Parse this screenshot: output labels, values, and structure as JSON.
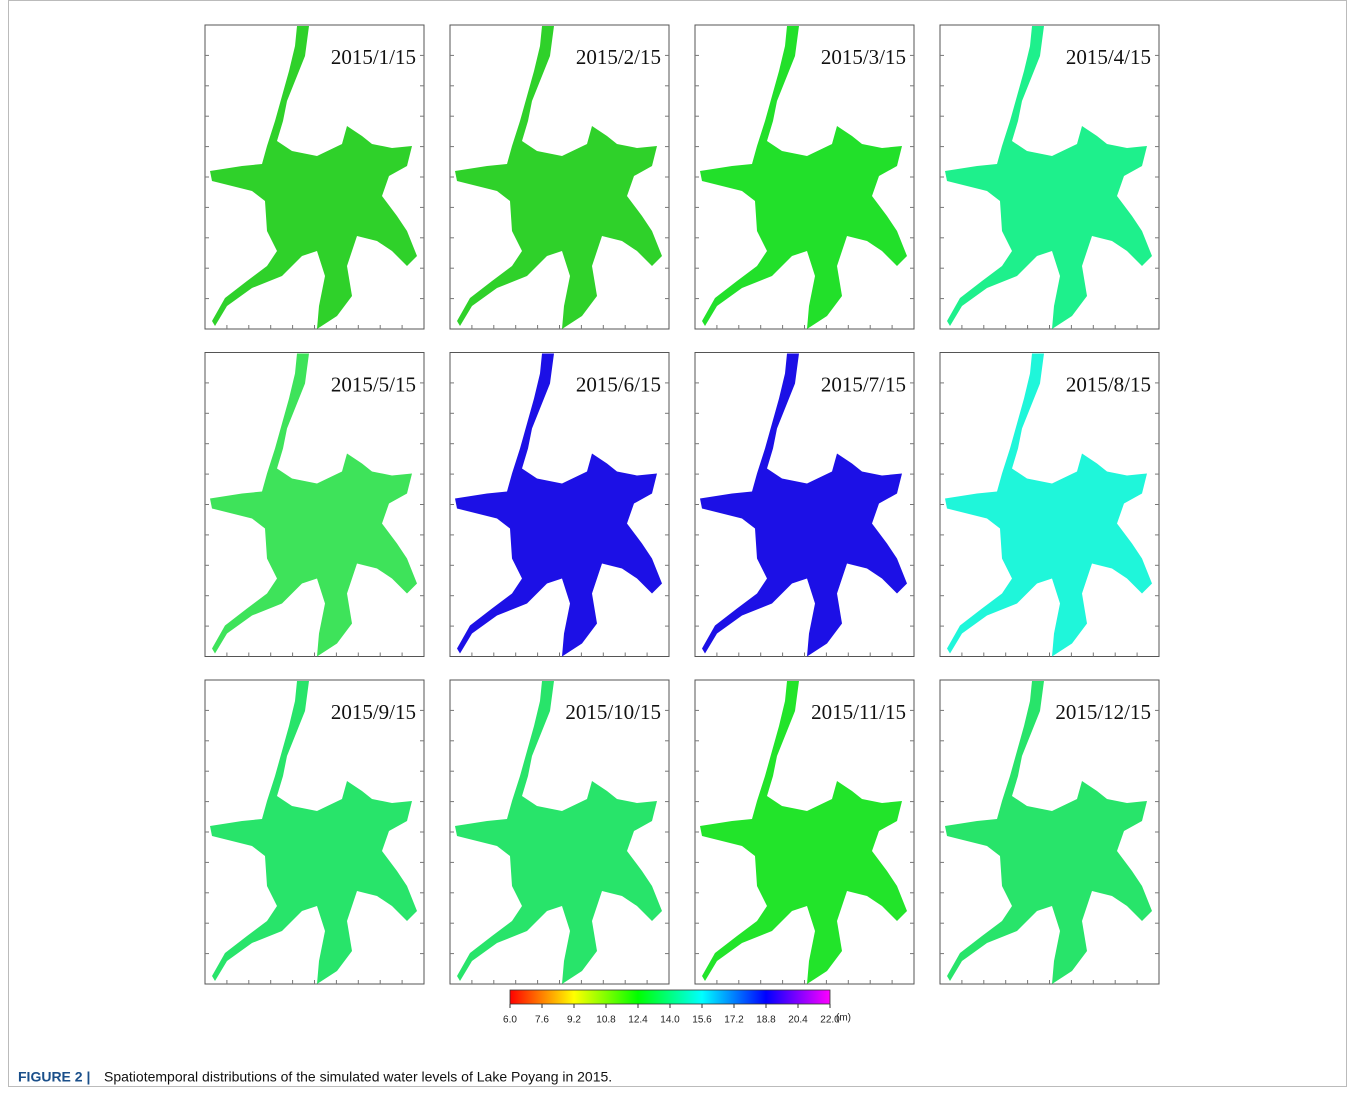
{
  "figure": {
    "panels": [
      {
        "label": "2015/1/15",
        "color": "#2fd12a"
      },
      {
        "label": "2015/2/15",
        "color": "#2fd12a"
      },
      {
        "label": "2015/3/15",
        "color": "#22e02a"
      },
      {
        "label": "2015/4/15",
        "color": "#1ef08c"
      },
      {
        "label": "2015/5/15",
        "color": "#3ee35a"
      },
      {
        "label": "2015/6/15",
        "color": "#1c10e6"
      },
      {
        "label": "2015/7/15",
        "color": "#1c10e6"
      },
      {
        "label": "2015/8/15",
        "color": "#1ff6da"
      },
      {
        "label": "2015/9/15",
        "color": "#28e46a"
      },
      {
        "label": "2015/10/15",
        "color": "#28e46a"
      },
      {
        "label": "2015/11/15",
        "color": "#22e42a"
      },
      {
        "label": "2015/12/15",
        "color": "#28e46a"
      }
    ],
    "colorbar": {
      "lim": [
        6,
        22
      ],
      "colors": [
        "#ff0000",
        "#ffff00",
        "#00ff00",
        "#00ffff",
        "#0000ff",
        "#ff00ff"
      ],
      "ticks": [
        {
          "value": 6,
          "label": "6.0"
        },
        7.6,
        9.2,
        10.8,
        12.4,
        {
          "value": 14,
          "label": "14.0"
        },
        15.6,
        17.2,
        18.8,
        20.4,
        {
          "value": 22,
          "label": "22.0"
        }
      ],
      "unit": "(m)"
    },
    "caption": {
      "label": "FIGURE 2 |",
      "text": "Spatiotemporal distributions of the simulated water levels of Lake Poyang in 2015."
    }
  }
}
